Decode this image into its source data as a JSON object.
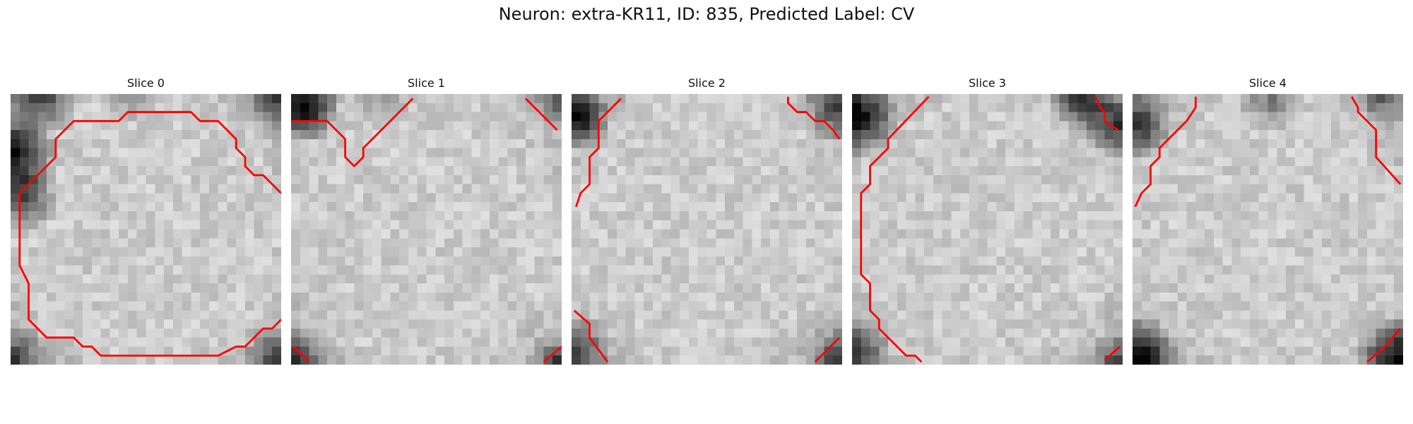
{
  "title": "Neuron: extra-KR11, ID: 835, Predicted Label: CV",
  "panels": [
    {
      "title": "Slice 0"
    },
    {
      "title": "Slice 1"
    },
    {
      "title": "Slice 2"
    },
    {
      "title": "Slice 3"
    },
    {
      "title": "Slice 4"
    }
  ],
  "colors": {
    "contour": "#ff0000"
  }
}
